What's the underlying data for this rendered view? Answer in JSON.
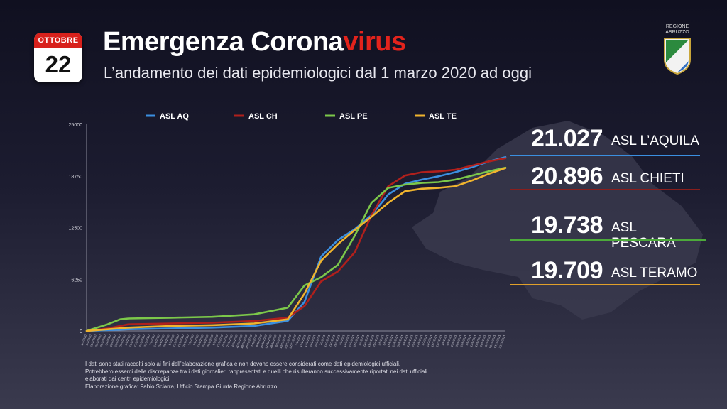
{
  "calendar": {
    "month": "OTTOBRE",
    "day": "22"
  },
  "header": {
    "title_main": "Emergenza Corona",
    "title_accent": "virus",
    "subtitle": "L’andamento dei dati epidemiologici dal 1 marzo 2020 ad oggi",
    "logo_text": "REGIONE ABRUZZO"
  },
  "colors": {
    "aq": "#3b8fe0",
    "ch": "#b0201c",
    "pe": "#7cc84a",
    "te": "#f0b42e",
    "title_accent": "#e3231c",
    "calendar_red": "#d8211c"
  },
  "totals": [
    {
      "value": "21.027",
      "label": "ASL L’AQUILA",
      "color": "#3b8fe0"
    },
    {
      "value": "20.896",
      "label": "ASL CHIETI",
      "color": "#b0201c"
    },
    {
      "value": "19.738",
      "label": "ASL PESCARA",
      "color": "#7cc84a"
    },
    {
      "value": "19.709",
      "label": "ASL TERAMO",
      "color": "#f0b42e"
    }
  ],
  "chart_data": {
    "type": "line",
    "title": "",
    "xlabel": "",
    "ylabel": "",
    "ylim": [
      0,
      25000
    ],
    "yticks": [
      0,
      6250,
      12500,
      18750,
      25000
    ],
    "ytick_labels": [
      "0",
      "6250",
      "12500",
      "18750",
      "25000"
    ],
    "grid": false,
    "legend_position": "top",
    "x_range_index": [
      0,
      100
    ],
    "series": [
      {
        "name": "ASL AQ",
        "color": "#3b8fe0",
        "x": [
          0,
          5,
          10,
          20,
          30,
          40,
          48,
          52,
          56,
          60,
          64,
          68,
          72,
          76,
          80,
          84,
          88,
          92,
          96,
          100
        ],
        "values": [
          0,
          100,
          200,
          300,
          400,
          600,
          1200,
          3500,
          9000,
          11000,
          12300,
          14000,
          16500,
          17800,
          18300,
          18700,
          19200,
          19800,
          20500,
          21027
        ]
      },
      {
        "name": "ASL CH",
        "color": "#b0201c",
        "x": [
          0,
          5,
          10,
          20,
          30,
          40,
          48,
          52,
          56,
          60,
          64,
          68,
          72,
          76,
          80,
          84,
          88,
          92,
          96,
          100
        ],
        "values": [
          0,
          300,
          800,
          900,
          1000,
          1200,
          1600,
          3000,
          6000,
          7200,
          9500,
          14000,
          17500,
          18800,
          19200,
          19300,
          19500,
          20000,
          20500,
          20896
        ]
      },
      {
        "name": "ASL PE",
        "color": "#7cc84a",
        "x": [
          0,
          5,
          8,
          10,
          20,
          30,
          40,
          48,
          52,
          56,
          60,
          64,
          68,
          72,
          76,
          80,
          84,
          88,
          92,
          96,
          100
        ],
        "values": [
          0,
          800,
          1400,
          1500,
          1600,
          1700,
          2000,
          2800,
          5500,
          6500,
          8000,
          11500,
          15500,
          17300,
          17700,
          17900,
          18000,
          18300,
          18800,
          19300,
          19738
        ]
      },
      {
        "name": "ASL TE",
        "color": "#f0b42e",
        "x": [
          0,
          5,
          10,
          20,
          30,
          40,
          48,
          52,
          56,
          60,
          64,
          68,
          72,
          76,
          80,
          84,
          88,
          92,
          96,
          100
        ],
        "values": [
          0,
          200,
          400,
          600,
          700,
          900,
          1400,
          4500,
          8500,
          10500,
          12200,
          13800,
          15500,
          16900,
          17200,
          17300,
          17500,
          18200,
          19000,
          19709
        ]
      }
    ],
    "x_tick_labels": [
      "1/3/2020",
      "8/3/2020",
      "15/3/2020",
      "22/3/2020",
      "29/3/2020",
      "5/4/2020",
      "12/4/2020",
      "19/4/2020",
      "26/4/2020",
      "3/5/2020",
      "10/5/2020",
      "17/5/2020",
      "24/5/2020",
      "31/5/2020",
      "7/6/2020",
      "14/6/2020",
      "21/6/2020",
      "28/6/2020",
      "5/7/2020",
      "12/7/2020",
      "19/7/2020",
      "26/7/2020",
      "2/8/2020",
      "9/8/2020",
      "16/8/2020",
      "23/8/2020",
      "30/8/2020",
      "6/9/2020",
      "13/9/2020",
      "20/9/2020",
      "27/9/2020",
      "4/10/2020",
      "11/10/2020",
      "18/10/2020",
      "25/10/2020",
      "1/11/2020",
      "8/11/2020",
      "15/11/2020",
      "22/11/2020",
      "29/11/2020",
      "6/12/2020",
      "13/12/2020",
      "20/12/2020",
      "27/12/2020",
      "3/1/2021",
      "10/1/2021",
      "17/1/2021",
      "24/1/2021",
      "31/1/2021",
      "7/2/2021",
      "14/2/2021",
      "21/2/2021",
      "28/2/2021",
      "7/3/2021",
      "14/3/2021",
      "21/3/2021",
      "28/3/2021",
      "4/4/2021",
      "11/4/2021",
      "18/4/2021",
      "25/4/2021",
      "2/5/2021",
      "9/5/2021",
      "16/5/2021",
      "23/5/2021",
      "30/5/2021",
      "6/6/2021",
      "13/6/2021",
      "20/6/2021",
      "27/6/2021",
      "4/7/2021",
      "11/7/2021",
      "18/7/2021",
      "25/7/2021",
      "1/8/2021",
      "8/8/2021",
      "15/8/2021",
      "22/8/2021",
      "29/8/2021",
      "5/9/2021",
      "12/9/2021",
      "19/9/2021",
      "26/9/2021",
      "3/10/2021",
      "10/10/2021",
      "17/10/2021",
      "22/10/2021"
    ]
  },
  "footnote": [
    "I dati sono stati raccolti solo ai fini dell’elaborazione grafica e non devono essere considerati come dati epidemiologici ufficiali.",
    "Potrebbero esserci delle discrepanze tra i dati giornalieri rappresentati e quelli che risulteranno successivamente riportati nei dati ufficiali",
    "elaborati dai centri epidemiologici.",
    "Elaborazione grafica: Fabio Sciarra, Ufficio Stampa Giunta Regione Abruzzo"
  ]
}
